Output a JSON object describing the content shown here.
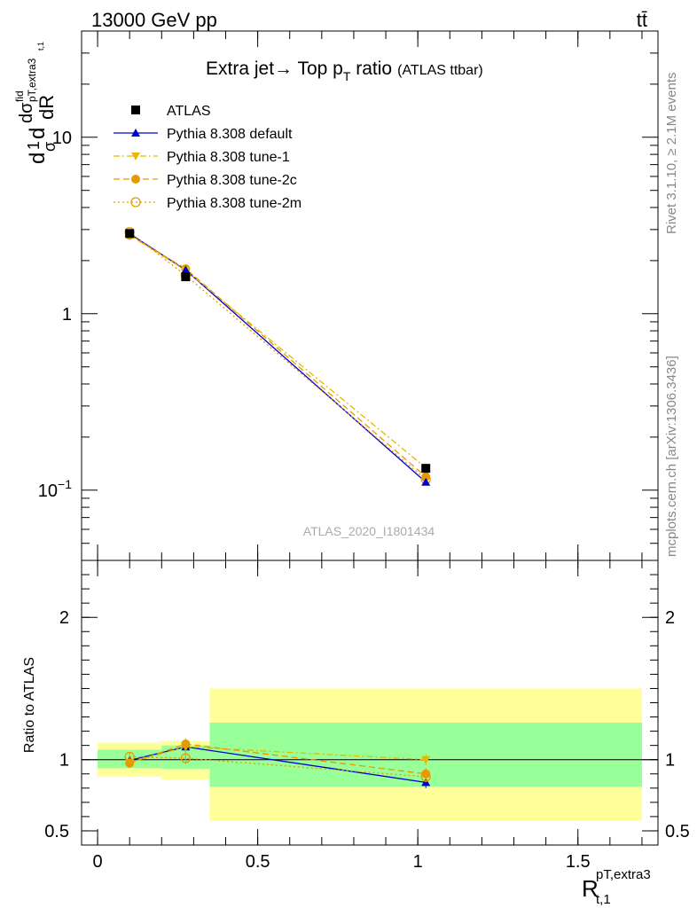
{
  "header": {
    "energy_label": "13000 GeV pp",
    "process_label": "tt̄",
    "side_label_top": "Rivet 3.1.10, ≥ 2.1M events",
    "side_label_bottom": "mcplots.cern.ch [arXiv:1306.3436]",
    "watermark": "ATLAS_2020_I1801434"
  },
  "chart_data": [
    {
      "type": "line",
      "panel": "main",
      "title": "Extra jet→ Top pT ratio",
      "title_parts": {
        "prefix": "Extra jet",
        "arrow": "→",
        "mid": " Top p",
        "sub": "T",
        "suffix": " ratio",
        "note": "(ATLAS ttbar)"
      },
      "ylabel": "1/σ dσ^fid/dR^pT,extra3_t,1",
      "ylabel_parts": {
        "d1": "d",
        "one": "1",
        "sigma": "σ",
        "d2": "d",
        "dsig": "dσ",
        "fid": "fid",
        "sub": "pT,extra3",
        "dR": "dR",
        "tsub": "t,1"
      },
      "y_scale": "log",
      "ylim": [
        0.04,
        40
      ],
      "xlim": [
        -0.05,
        1.75
      ],
      "y_ticks": [
        {
          "value": 0.1,
          "label": "10",
          "sup": "−1"
        },
        {
          "value": 1,
          "label": "1",
          "sup": ""
        },
        {
          "value": 10,
          "label": "10",
          "sup": ""
        }
      ],
      "legend_position": "top-left",
      "series": [
        {
          "name": "ATLAS",
          "color": "#000000",
          "marker": "square",
          "line": "none",
          "x": [
            0.1,
            0.275,
            1.025
          ],
          "y": [
            2.85,
            1.62,
            0.133
          ],
          "yerr": [
            0.04,
            0.03,
            0.002
          ]
        },
        {
          "name": "Pythia 8.308 default",
          "color": "#0000cc",
          "marker": "triangle-up",
          "line": "solid",
          "x": [
            0.1,
            0.275,
            1.025
          ],
          "y": [
            2.84,
            1.77,
            0.111
          ]
        },
        {
          "name": "Pythia 8.308 tune-1",
          "color": "#e6b800",
          "marker": "triangle-down",
          "line": "dashdot",
          "x": [
            0.1,
            0.275,
            1.025
          ],
          "y": [
            2.8,
            1.76,
            0.134
          ]
        },
        {
          "name": "Pythia 8.308 tune-2c",
          "color": "#e69a00",
          "marker": "circle",
          "line": "dashed",
          "x": [
            0.1,
            0.275,
            1.025
          ],
          "y": [
            2.78,
            1.8,
            0.119
          ]
        },
        {
          "name": "Pythia 8.308 tune-2m",
          "color": "#e69a00",
          "marker": "circle-open",
          "line": "dotted",
          "x": [
            0.1,
            0.275,
            1.025
          ],
          "y": [
            2.9,
            1.65,
            0.115
          ]
        }
      ]
    },
    {
      "type": "line",
      "panel": "ratio",
      "ylabel": "Ratio to ATLAS",
      "ylim": [
        0.4,
        2.4
      ],
      "xlim": [
        -0.05,
        1.75
      ],
      "y_ticks": [
        {
          "value": 0.5,
          "label": "0.5"
        },
        {
          "value": 1,
          "label": "1"
        },
        {
          "value": 2,
          "label": "2"
        }
      ],
      "x_ticks": [
        {
          "value": 0,
          "label": "0"
        },
        {
          "value": 0.5,
          "label": "0.5"
        },
        {
          "value": 1,
          "label": "1"
        },
        {
          "value": 1.5,
          "label": "1.5"
        }
      ],
      "xlabel": "R^pT,extra3_t,1",
      "xlabel_parts": {
        "R": "R",
        "sup": "pT,extra3",
        "sub": "t,1"
      },
      "bands": [
        {
          "x0": 0.0,
          "x1": 0.2,
          "yellow": [
            0.88,
            1.12
          ],
          "green": [
            0.94,
            1.07
          ]
        },
        {
          "x0": 0.2,
          "x1": 0.35,
          "yellow": [
            0.86,
            1.13
          ],
          "green": [
            0.935,
            1.1
          ]
        },
        {
          "x0": 0.35,
          "x1": 1.7,
          "yellow": [
            0.57,
            1.5
          ],
          "green": [
            0.81,
            1.26
          ]
        }
      ],
      "series": [
        {
          "name": "Pythia 8.308 default",
          "color": "#0000cc",
          "marker": "triangle-up",
          "line": "solid",
          "x": [
            0.1,
            0.275,
            1.025
          ],
          "y": [
            0.995,
            1.09,
            0.84
          ],
          "yerr": [
            0.03,
            0.04,
            0.04
          ]
        },
        {
          "name": "Pythia 8.308 tune-1",
          "color": "#e6b800",
          "marker": "triangle-down",
          "line": "dashdot",
          "x": [
            0.1,
            0.275,
            1.025
          ],
          "y": [
            0.98,
            1.09,
            1.0
          ],
          "yerr": [
            0.03,
            0.04,
            0.04
          ]
        },
        {
          "name": "Pythia 8.308 tune-2c",
          "color": "#e69a00",
          "marker": "circle",
          "line": "dashed",
          "x": [
            0.1,
            0.275,
            1.025
          ],
          "y": [
            0.975,
            1.11,
            0.9
          ],
          "yerr": [
            0.03,
            0.04,
            0.04
          ]
        },
        {
          "name": "Pythia 8.308 tune-2m",
          "color": "#e69a00",
          "marker": "circle-open",
          "line": "dotted",
          "x": [
            0.1,
            0.275,
            1.025
          ],
          "y": [
            1.02,
            1.01,
            0.88
          ],
          "yerr": [
            0.03,
            0.04,
            0.04
          ]
        }
      ]
    }
  ]
}
